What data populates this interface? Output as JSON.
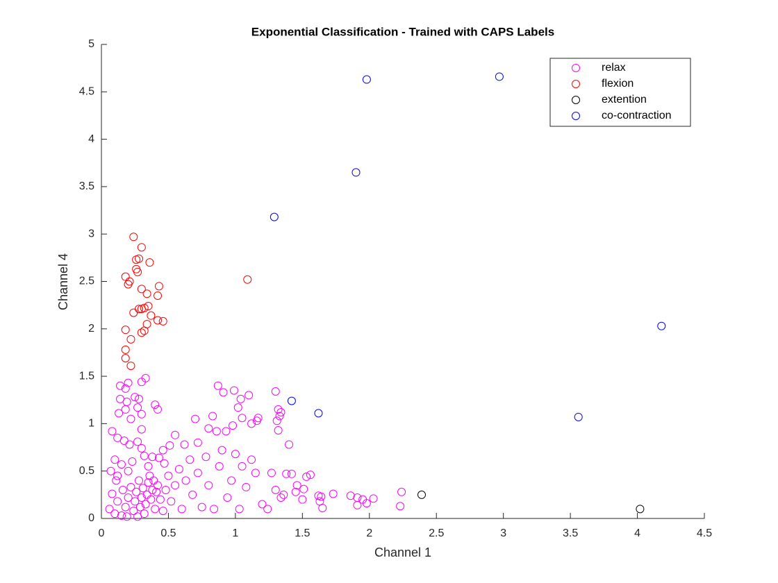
{
  "chart_data": {
    "type": "scatter",
    "title": "Exponential Classification - Trained with CAPS Labels",
    "x_label": "Channel 1",
    "y_label": "Channel 4",
    "xlim": [
      0,
      4.5
    ],
    "xticks": [
      0,
      0.5,
      1,
      1.5,
      2,
      2.5,
      3,
      3.5,
      4,
      4.5
    ],
    "ylim": [
      0,
      5
    ],
    "yticks": [
      0,
      0.5,
      1,
      1.5,
      2,
      2.5,
      3,
      3.5,
      4,
      4.5,
      5
    ],
    "legend": "upper right",
    "series": [
      {
        "name": "relax",
        "color": "#ff00ff",
        "x": [
          2.24,
          2.23,
          2.03,
          1.98,
          1.95,
          1.91,
          1.86,
          1.91,
          1.73,
          1.64,
          1.62,
          1.65,
          1.63,
          1.56,
          1.53,
          1.51,
          1.46,
          1.42,
          1.38,
          1.4,
          1.32,
          1.3,
          1.32,
          1.34,
          1.33,
          1.31,
          1.16,
          1.17,
          1.1,
          1.04,
          0.99,
          0.91,
          0.87,
          1.02,
          1.12,
          1.05,
          0.98,
          0.93,
          0.86,
          0.8,
          0.83,
          0.7,
          0.72,
          0.62,
          0.55,
          0.51,
          0.46,
          0.43,
          0.38,
          0.32,
          0.3,
          0.3,
          0.3,
          0.4,
          0.42,
          0.33,
          0.3,
          0.2,
          0.14,
          0.18,
          0.25,
          0.28,
          0.19,
          0.14,
          0.13,
          0.18,
          0.27,
          0.22,
          0.08,
          0.12,
          0.17,
          0.21,
          0.27,
          0.1,
          0.15,
          0.2,
          0.07,
          0.11,
          0.08,
          0.06,
          0.1,
          0.15,
          0.12,
          0.16,
          0.18,
          0.2,
          0.22,
          0.24,
          0.25,
          0.26,
          0.28,
          0.29,
          0.3,
          0.31,
          0.32,
          0.33,
          0.34,
          0.35,
          0.36,
          0.37,
          0.38,
          0.39,
          0.4,
          0.41,
          0.42,
          0.44,
          0.46,
          0.48,
          0.5,
          0.52,
          0.55,
          0.58,
          0.6,
          0.63,
          0.66,
          0.68,
          0.72,
          0.75,
          0.78,
          0.8,
          0.84,
          0.88,
          0.9,
          0.94,
          0.97,
          1.0,
          1.03,
          1.05,
          1.08,
          1.12,
          1.15,
          1.2,
          1.24,
          1.27,
          1.3,
          1.34,
          1.36,
          1.45,
          1.5,
          0.12,
          0.23,
          0.35,
          0.47,
          0.27,
          0.19
        ],
        "values": [
          0.28,
          0.13,
          0.21,
          0.16,
          0.2,
          0.22,
          0.24,
          0.14,
          0.26,
          0.23,
          0.24,
          0.11,
          0.18,
          0.46,
          0.44,
          0.31,
          0.35,
          0.47,
          0.47,
          0.78,
          0.93,
          1.34,
          1.15,
          1.12,
          1.08,
          1.03,
          1.03,
          1.06,
          1.3,
          1.26,
          1.35,
          1.33,
          1.4,
          1.17,
          1.0,
          1.06,
          0.98,
          0.92,
          0.92,
          0.95,
          1.08,
          1.05,
          0.8,
          0.78,
          0.88,
          0.77,
          0.72,
          0.64,
          0.65,
          0.66,
          0.74,
          0.94,
          1.1,
          1.2,
          1.15,
          1.48,
          1.44,
          1.43,
          1.4,
          1.37,
          1.28,
          1.26,
          1.23,
          1.26,
          1.11,
          1.15,
          1.17,
          1.05,
          0.92,
          0.85,
          0.82,
          0.78,
          0.81,
          0.62,
          0.57,
          0.5,
          0.5,
          0.4,
          0.26,
          0.1,
          0.05,
          0.03,
          0.18,
          0.3,
          0.12,
          0.22,
          0.33,
          0.08,
          0.18,
          0.28,
          0.4,
          0.12,
          0.22,
          0.32,
          0.05,
          0.15,
          0.25,
          0.38,
          0.45,
          0.2,
          0.3,
          0.4,
          0.1,
          0.28,
          0.35,
          0.2,
          0.08,
          0.3,
          0.45,
          0.18,
          0.35,
          0.52,
          0.1,
          0.4,
          0.62,
          0.25,
          0.48,
          0.12,
          0.65,
          0.35,
          0.1,
          0.55,
          0.72,
          0.22,
          0.4,
          0.68,
          0.1,
          0.55,
          0.33,
          0.62,
          0.48,
          0.15,
          0.1,
          0.48,
          0.3,
          0.22,
          0.25,
          0.28,
          0.2,
          0.45,
          0.6,
          0.55,
          0.58,
          0.02,
          0.02
        ]
      },
      {
        "name": "flexion",
        "color": "#ff0000",
        "x": [
          0.24,
          0.3,
          0.26,
          0.28,
          0.36,
          0.26,
          0.27,
          0.18,
          0.21,
          0.2,
          0.3,
          0.43,
          0.34,
          0.42,
          0.35,
          0.32,
          0.28,
          0.3,
          0.24,
          0.37,
          0.42,
          0.46,
          0.34,
          0.32,
          0.3,
          0.18,
          0.22,
          0.18,
          0.18,
          0.22,
          1.09
        ],
        "values": [
          2.97,
          2.86,
          2.73,
          2.74,
          2.7,
          2.63,
          2.6,
          2.55,
          2.5,
          2.47,
          2.42,
          2.45,
          2.37,
          2.35,
          2.24,
          2.22,
          2.21,
          2.21,
          2.17,
          2.14,
          2.09,
          2.08,
          2.05,
          1.98,
          1.96,
          1.99,
          1.89,
          1.78,
          1.69,
          1.61,
          2.52
        ]
      },
      {
        "name": "extention",
        "color": "#000000",
        "x": [
          2.39,
          4.02
        ],
        "values": [
          0.25,
          0.1
        ]
      },
      {
        "name": "co-contraction",
        "color": "#0000ff",
        "x": [
          1.98,
          2.97,
          1.9,
          1.29,
          4.18,
          1.42,
          1.62,
          3.56
        ],
        "values": [
          4.63,
          4.66,
          3.65,
          3.18,
          2.03,
          1.24,
          1.11,
          1.07
        ]
      }
    ]
  }
}
